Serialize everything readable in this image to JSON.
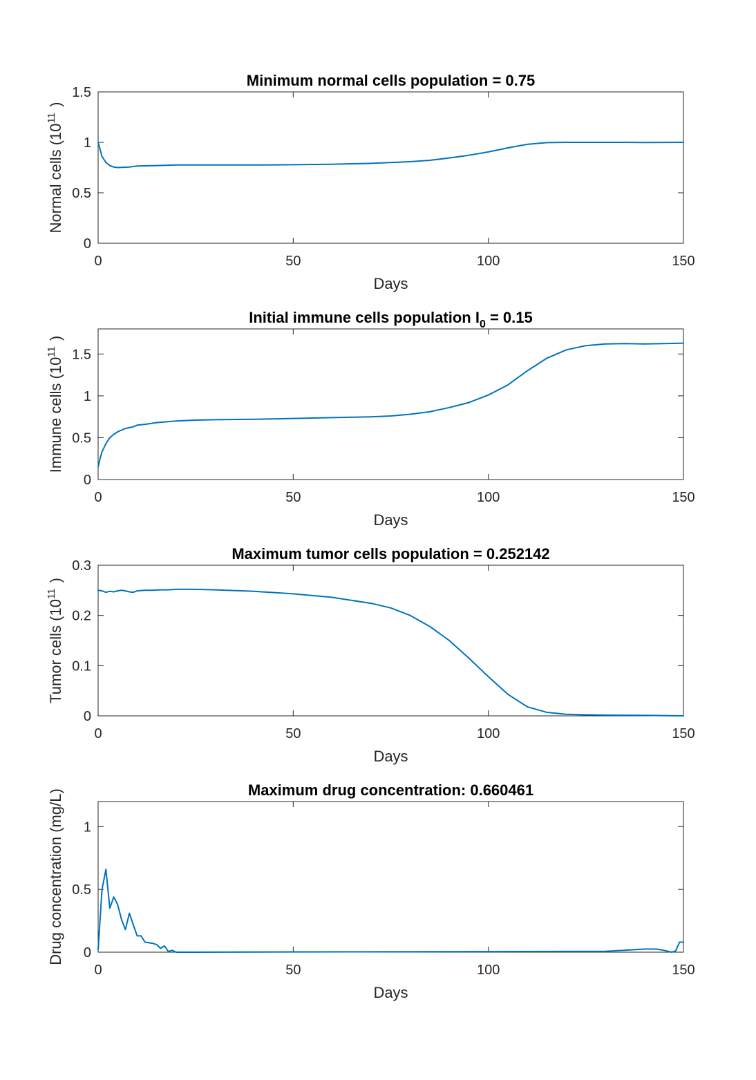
{
  "figure": {
    "background": "#ffffff",
    "line_color": "#0072bd",
    "axis_color": "#262626"
  },
  "chart_data": [
    {
      "type": "line",
      "title": "Minimum normal cells population = 0.75",
      "xlabel": "Days",
      "ylabel": {
        "text": "Normal cells (10",
        "sup": "11",
        "tail": ")"
      },
      "xlim": [
        0,
        150
      ],
      "ylim": [
        0,
        1.5
      ],
      "xticks": [
        0,
        50,
        100,
        150
      ],
      "yticks": [
        0,
        0.5,
        1,
        1.5
      ],
      "ytick_labels": [
        "0",
        "0.5",
        "1",
        "1.5"
      ],
      "series": [
        {
          "x": [
            0,
            1,
            2,
            3,
            4,
            5,
            6,
            8,
            10,
            15,
            20,
            30,
            40,
            50,
            60,
            70,
            80,
            85,
            90,
            95,
            100,
            105,
            110,
            115,
            120,
            125,
            130,
            135,
            140,
            145,
            150
          ],
          "values": [
            1.0,
            0.86,
            0.8,
            0.77,
            0.755,
            0.75,
            0.752,
            0.755,
            0.765,
            0.77,
            0.775,
            0.775,
            0.775,
            0.778,
            0.783,
            0.792,
            0.808,
            0.822,
            0.845,
            0.872,
            0.905,
            0.945,
            0.98,
            0.997,
            1.0,
            1.0,
            1.0,
            1.0,
            0.998,
            0.999,
            1.0
          ]
        }
      ]
    },
    {
      "type": "line",
      "title": {
        "main": "Initial immune cells population I",
        "sub": "0",
        "tail": " = 0.15"
      },
      "xlabel": "Days",
      "ylabel": {
        "text": "Immune cells (10",
        "sup": "11",
        "tail": ")"
      },
      "xlim": [
        0,
        150
      ],
      "ylim": [
        0,
        1.8
      ],
      "xticks": [
        0,
        50,
        100,
        150
      ],
      "yticks": [
        0,
        0.5,
        1,
        1.5
      ],
      "ytick_labels": [
        "0",
        "0.5",
        "1",
        "1.5"
      ],
      "series": [
        {
          "x": [
            0,
            0.5,
            1,
            2,
            3,
            4,
            5,
            6,
            7,
            8,
            9,
            10,
            12,
            15,
            20,
            25,
            30,
            40,
            50,
            60,
            70,
            75,
            80,
            85,
            90,
            95,
            100,
            105,
            110,
            115,
            120,
            125,
            130,
            135,
            140,
            145,
            150
          ],
          "values": [
            0.15,
            0.25,
            0.33,
            0.43,
            0.5,
            0.54,
            0.57,
            0.59,
            0.61,
            0.62,
            0.63,
            0.65,
            0.66,
            0.68,
            0.7,
            0.71,
            0.715,
            0.72,
            0.73,
            0.74,
            0.75,
            0.76,
            0.78,
            0.81,
            0.86,
            0.92,
            1.01,
            1.13,
            1.3,
            1.45,
            1.55,
            1.6,
            1.62,
            1.625,
            1.62,
            1.625,
            1.63
          ]
        }
      ]
    },
    {
      "type": "line",
      "title": "Maximum tumor cells population = 0.252142",
      "xlabel": "Days",
      "ylabel": {
        "text": "Tumor cells (10",
        "sup": "11",
        "tail": ")"
      },
      "xlim": [
        0,
        150
      ],
      "ylim": [
        0,
        0.3
      ],
      "xticks": [
        0,
        50,
        100,
        150
      ],
      "yticks": [
        0,
        0.1,
        0.2,
        0.3
      ],
      "ytick_labels": [
        "0",
        "0.1",
        "0.2",
        "0.3"
      ],
      "series": [
        {
          "x": [
            0,
            1,
            2,
            3,
            4,
            5,
            6,
            7,
            8,
            9,
            10,
            12,
            14,
            16,
            18,
            20,
            25,
            30,
            40,
            50,
            60,
            70,
            75,
            80,
            85,
            90,
            95,
            100,
            105,
            110,
            115,
            120,
            125,
            130,
            140,
            150
          ],
          "values": [
            0.25,
            0.249,
            0.246,
            0.248,
            0.247,
            0.249,
            0.25,
            0.249,
            0.247,
            0.246,
            0.249,
            0.25,
            0.25,
            0.251,
            0.251,
            0.252,
            0.252,
            0.251,
            0.248,
            0.243,
            0.236,
            0.224,
            0.215,
            0.2,
            0.178,
            0.15,
            0.115,
            0.078,
            0.043,
            0.018,
            0.007,
            0.003,
            0.002,
            0.0015,
            0.001,
            0.0
          ]
        }
      ]
    },
    {
      "type": "line",
      "title": "Maximum drug concentration: 0.660461",
      "xlabel": "Days",
      "ylabel": {
        "text": "Drug concentration (mg/L)",
        "sup": "",
        "tail": ""
      },
      "xlim": [
        0,
        150
      ],
      "ylim": [
        0,
        1.2
      ],
      "xticks": [
        0,
        50,
        100,
        150
      ],
      "yticks": [
        0,
        0.5,
        1
      ],
      "ytick_labels": [
        "0",
        "0.5",
        "1"
      ],
      "series": [
        {
          "x": [
            0,
            1,
            2,
            3,
            4,
            5,
            6,
            7,
            8,
            9,
            10,
            11,
            12,
            13,
            14,
            15,
            16,
            17,
            18,
            19,
            20,
            22,
            25,
            50,
            100,
            130,
            135,
            140,
            143,
            145,
            147,
            148,
            149,
            150
          ],
          "values": [
            0.02,
            0.5,
            0.66,
            0.35,
            0.44,
            0.38,
            0.26,
            0.18,
            0.31,
            0.22,
            0.13,
            0.13,
            0.08,
            0.075,
            0.07,
            0.06,
            0.03,
            0.05,
            0.005,
            0.015,
            0.0,
            0.0,
            0.0,
            0.002,
            0.005,
            0.007,
            0.015,
            0.025,
            0.025,
            0.015,
            0.0,
            0.01,
            0.08,
            0.08
          ]
        }
      ]
    }
  ]
}
